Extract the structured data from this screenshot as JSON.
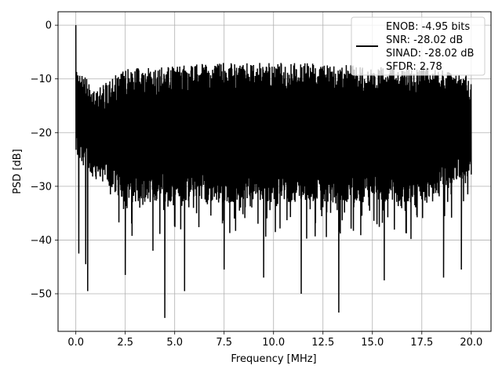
{
  "chart_data": {
    "type": "line",
    "title": "",
    "xlabel": "Frequency [MHz]",
    "ylabel": "PSD [dB]",
    "xlim": [
      -0.9,
      21.0
    ],
    "ylim": [
      -57.0,
      2.5
    ],
    "xticks": [
      0.0,
      2.5,
      5.0,
      7.5,
      10.0,
      12.5,
      15.0,
      17.5,
      20.0
    ],
    "xtick_labels": [
      "0.0",
      "2.5",
      "5.0",
      "7.5",
      "10.0",
      "12.5",
      "15.0",
      "17.5",
      "20.0"
    ],
    "yticks": [
      0,
      -10,
      -20,
      -30,
      -40,
      -50
    ],
    "ytick_labels": [
      "0",
      "−10",
      "−20",
      "−30",
      "−40",
      "−50"
    ],
    "grid": true,
    "legend_position": "top-right",
    "legend": [
      "ENOB: -4.95 bits",
      "SNR: -28.02 dB",
      "SINAD: -28.02 dB",
      "SFDR: 2.78"
    ],
    "series": [
      {
        "color": "#000000",
        "x_range": [
          0.0,
          20.0
        ],
        "samples": 2048,
        "peak": {
          "x": 0.0,
          "y": 0.0
        },
        "upper_envelope": [
          [
            0.0,
            -7.5
          ],
          [
            1.0,
            -12.0
          ],
          [
            2.5,
            -8.0
          ],
          [
            3.5,
            -8.0
          ],
          [
            5.0,
            -7.5
          ],
          [
            7.5,
            -7.0
          ],
          [
            10.0,
            -7.0
          ],
          [
            12.5,
            -7.0
          ],
          [
            15.0,
            -7.5
          ],
          [
            17.5,
            -7.5
          ],
          [
            20.0,
            -9.5
          ]
        ],
        "lower_envelope": [
          [
            0.0,
            -25.0
          ],
          [
            2.5,
            -33.0
          ],
          [
            5.0,
            -33.0
          ],
          [
            7.5,
            -33.0
          ],
          [
            10.0,
            -33.0
          ],
          [
            12.5,
            -33.0
          ],
          [
            15.0,
            -33.0
          ],
          [
            17.5,
            -33.0
          ],
          [
            20.0,
            -28.0
          ]
        ],
        "notable_dips": [
          {
            "x": 0.15,
            "y": -42.5
          },
          {
            "x": 0.5,
            "y": -44.5
          },
          {
            "x": 0.6,
            "y": -49.5
          },
          {
            "x": 2.5,
            "y": -46.5
          },
          {
            "x": 3.9,
            "y": -42.0
          },
          {
            "x": 4.5,
            "y": -54.5
          },
          {
            "x": 5.5,
            "y": -49.5
          },
          {
            "x": 7.5,
            "y": -45.5
          },
          {
            "x": 9.5,
            "y": -47.0
          },
          {
            "x": 11.4,
            "y": -50.0
          },
          {
            "x": 13.3,
            "y": -53.5
          },
          {
            "x": 15.6,
            "y": -47.5
          },
          {
            "x": 18.6,
            "y": -47.0
          },
          {
            "x": 19.5,
            "y": -45.5
          }
        ]
      }
    ]
  }
}
